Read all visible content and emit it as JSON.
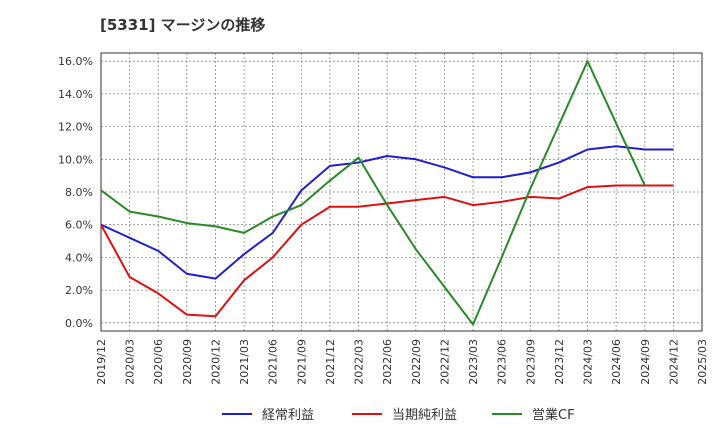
{
  "chart_data": {
    "type": "line",
    "title": "[5331]  マージンの推移",
    "xlabel": "",
    "ylabel": "",
    "x": [
      "2019/12",
      "2020/03",
      "2020/06",
      "2020/09",
      "2020/12",
      "2021/03",
      "2021/06",
      "2021/09",
      "2021/12",
      "2022/03",
      "2022/06",
      "2022/09",
      "2022/12",
      "2023/03",
      "2023/06",
      "2023/09",
      "2023/12",
      "2024/03",
      "2024/06",
      "2024/09",
      "2024/12",
      "2025/03"
    ],
    "ylim": [
      -0.5,
      16.5
    ],
    "yticks": [
      0,
      2,
      4,
      6,
      8,
      10,
      12,
      14,
      16
    ],
    "ytick_labels": [
      "0.0%",
      "2.0%",
      "4.0%",
      "6.0%",
      "8.0%",
      "10.0%",
      "12.0%",
      "14.0%",
      "16.0%"
    ],
    "grid": true,
    "legend_position": "bottom",
    "series": [
      {
        "name": "経常利益",
        "color": "#1f1fcc",
        "values": [
          6.0,
          5.2,
          4.4,
          3.0,
          2.7,
          4.2,
          5.5,
          8.1,
          9.6,
          9.8,
          10.2,
          10.0,
          9.5,
          8.9,
          8.9,
          9.2,
          9.8,
          10.6,
          10.8,
          10.6,
          10.6,
          null
        ]
      },
      {
        "name": "当期純利益",
        "color": "#dd1111",
        "values": [
          6.0,
          2.8,
          1.8,
          0.5,
          0.4,
          2.6,
          4.0,
          6.0,
          7.1,
          7.1,
          7.3,
          7.5,
          7.7,
          7.2,
          7.4,
          7.7,
          7.6,
          8.3,
          8.4,
          8.4,
          8.4,
          null
        ]
      },
      {
        "name": "営業CF",
        "color": "#2a8a2a",
        "values": [
          8.1,
          6.8,
          6.5,
          6.1,
          5.9,
          5.5,
          6.5,
          7.2,
          8.7,
          10.1,
          7.2,
          4.5,
          2.2,
          -0.1,
          4.0,
          8.2,
          12.1,
          16.0,
          12.2,
          8.4,
          null,
          null
        ]
      }
    ]
  }
}
